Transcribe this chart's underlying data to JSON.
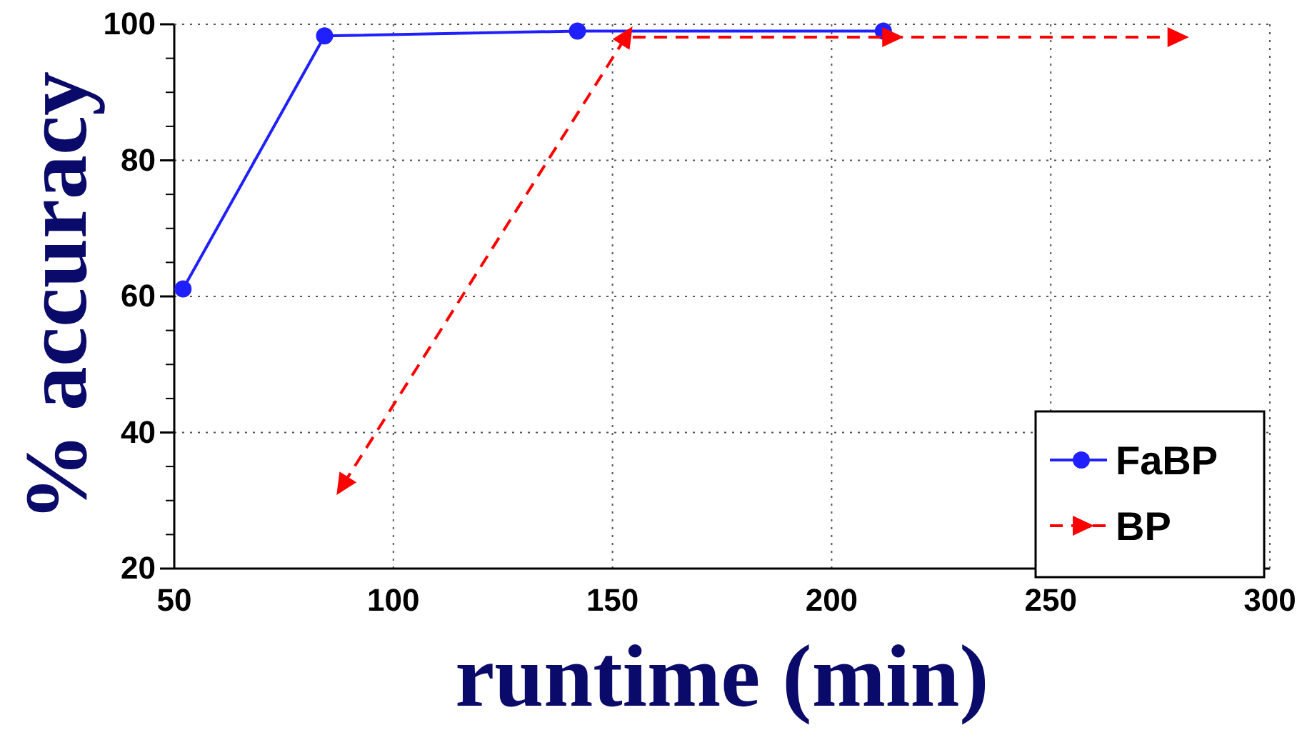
{
  "chart_data": {
    "type": "line",
    "xlabel": "runtime (min)",
    "ylabel": "% accuracy",
    "xlim": [
      50,
      300
    ],
    "xticks": [
      50,
      100,
      150,
      200,
      250,
      300
    ],
    "ylim": [
      20,
      100
    ],
    "yticks": [
      20,
      40,
      60,
      80,
      100
    ],
    "grid": true,
    "legend": "bottom right",
    "series": [
      {
        "name": "FaBP",
        "color": "#2020ff",
        "marker": "circle",
        "line_style": "solid",
        "x": [
          52,
          84.3,
          142,
          211.8
        ],
        "values": [
          61.1,
          98.3,
          99,
          99
        ]
      },
      {
        "name": "BP",
        "color": "#ff0000",
        "marker": "triangle",
        "line_style": "dashed",
        "x": [
          88.6,
          153,
          213.5,
          278.6
        ],
        "values": [
          32.4,
          98.1,
          98.1,
          98.1
        ]
      }
    ]
  }
}
